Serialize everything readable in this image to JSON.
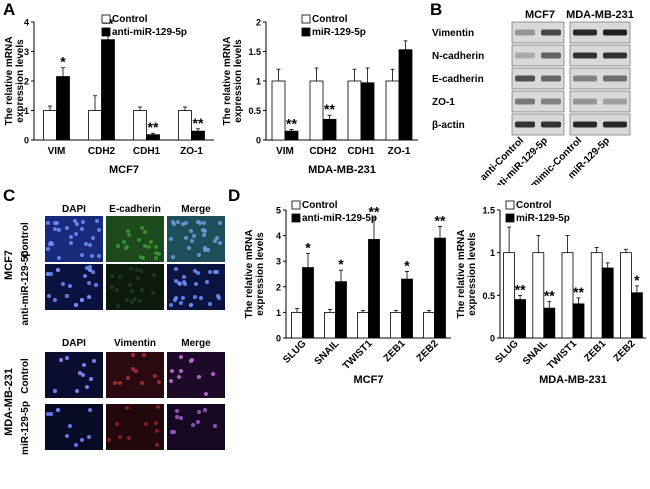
{
  "panels": {
    "A": "A",
    "B": "B",
    "C": "C",
    "D": "D"
  },
  "panelA_left": {
    "chart_data": {
      "type": "bar",
      "ylabel": "The relative mRNA expression levels",
      "xlabel": "MCF7",
      "categories": [
        "VIM",
        "CDH2",
        "CDH1",
        "ZO-1"
      ],
      "ylim": [
        0,
        4
      ],
      "yticks": [
        "0",
        "1",
        "2",
        "3",
        "4"
      ],
      "series": [
        {
          "name": "Control",
          "values": [
            1,
            1,
            1,
            1
          ],
          "errors": [
            0.15,
            0.5,
            0.12,
            0.12
          ],
          "color": "#ffffff"
        },
        {
          "name": "anti-miR-129-5p",
          "values": [
            2.15,
            3.4,
            0.18,
            0.3
          ],
          "errors": [
            0.3,
            0.35,
            0.05,
            0.08
          ],
          "color": "#000000"
        }
      ],
      "annotations": [
        "*",
        "**",
        "**",
        "**"
      ]
    }
  },
  "panelA_right": {
    "chart_data": {
      "type": "bar",
      "ylabel": "The relative mRNA expression levels",
      "xlabel": "MDA-MB-231",
      "categories": [
        "VIM",
        "CDH2",
        "CDH1",
        "ZO-1"
      ],
      "ylim": [
        0,
        2
      ],
      "yticks": [
        "0",
        "0.5",
        "1",
        "1.5",
        "2"
      ],
      "series": [
        {
          "name": "Control",
          "values": [
            1,
            1,
            1,
            1
          ],
          "errors": [
            0.2,
            0.22,
            0.2,
            0.2
          ],
          "color": "#ffffff"
        },
        {
          "name": "miR-129-5p",
          "values": [
            0.15,
            0.35,
            0.97,
            1.53
          ],
          "errors": [
            0.03,
            0.07,
            0.25,
            0.15
          ],
          "color": "#000000"
        }
      ],
      "annotations": [
        "**",
        "**",
        "",
        ""
      ]
    }
  },
  "panelB": {
    "col_headers": [
      "MCF7",
      "MDA-MB-231"
    ],
    "rows": [
      "Vimentin",
      "N-cadherin",
      "E-cadherin",
      "ZO-1",
      "β-actin"
    ],
    "lanes": [
      "anti-Control",
      "anti-miR-129-5p",
      "mimic-Control",
      "miR-129-5p"
    ]
  },
  "panelC": {
    "top_cols": [
      "DAPI",
      "E-cadherin",
      "Merge"
    ],
    "top_cell": "MCF7",
    "top_rows": [
      "Control",
      "anti-miR-129-5p"
    ],
    "bottom_cols": [
      "DAPI",
      "Vimentin",
      "Merge"
    ],
    "bottom_cell": "MDA-MB-231",
    "bottom_rows": [
      "Control",
      "miR-129-5p"
    ]
  },
  "panelD_left": {
    "chart_data": {
      "type": "bar",
      "ylabel": "The relative mRNA expression levels",
      "xlabel": "MCF7",
      "categories": [
        "SLUG",
        "SNAIL",
        "TWIST1",
        "ZEB1",
        "ZEB2"
      ],
      "ylim": [
        0,
        5
      ],
      "yticks": [
        "0",
        "1",
        "2",
        "3",
        "4",
        "5"
      ],
      "series": [
        {
          "name": "Control",
          "values": [
            1,
            1,
            1,
            1,
            1
          ],
          "errors": [
            0.15,
            0.12,
            0.08,
            0.08,
            0.08
          ],
          "color": "#ffffff"
        },
        {
          "name": "anti-miR-129-5p",
          "values": [
            2.75,
            2.2,
            3.85,
            2.3,
            3.9
          ],
          "errors": [
            0.55,
            0.45,
            0.85,
            0.3,
            0.45
          ],
          "color": "#000000"
        }
      ],
      "annotations": [
        "*",
        "*",
        "**",
        "*",
        "**"
      ]
    }
  },
  "panelD_right": {
    "chart_data": {
      "type": "bar",
      "ylabel": "The relative mRNA expression levels",
      "xlabel": "MDA-MB-231",
      "categories": [
        "SLUG",
        "SNAIL",
        "TWIST1",
        "ZEB1",
        "ZEB2"
      ],
      "ylim": [
        0,
        1.5
      ],
      "yticks": [
        "0",
        "0.5",
        "1",
        "1.5"
      ],
      "series": [
        {
          "name": "Control",
          "values": [
            1,
            1,
            1,
            1,
            1
          ],
          "errors": [
            0.3,
            0.2,
            0.2,
            0.06,
            0.04
          ],
          "color": "#ffffff"
        },
        {
          "name": "miR-129-5p",
          "values": [
            0.45,
            0.35,
            0.4,
            0.82,
            0.53
          ],
          "errors": [
            0.05,
            0.08,
            0.07,
            0.06,
            0.08
          ],
          "color": "#000000"
        }
      ],
      "annotations": [
        "**",
        "**",
        "**",
        "",
        "*"
      ]
    }
  }
}
